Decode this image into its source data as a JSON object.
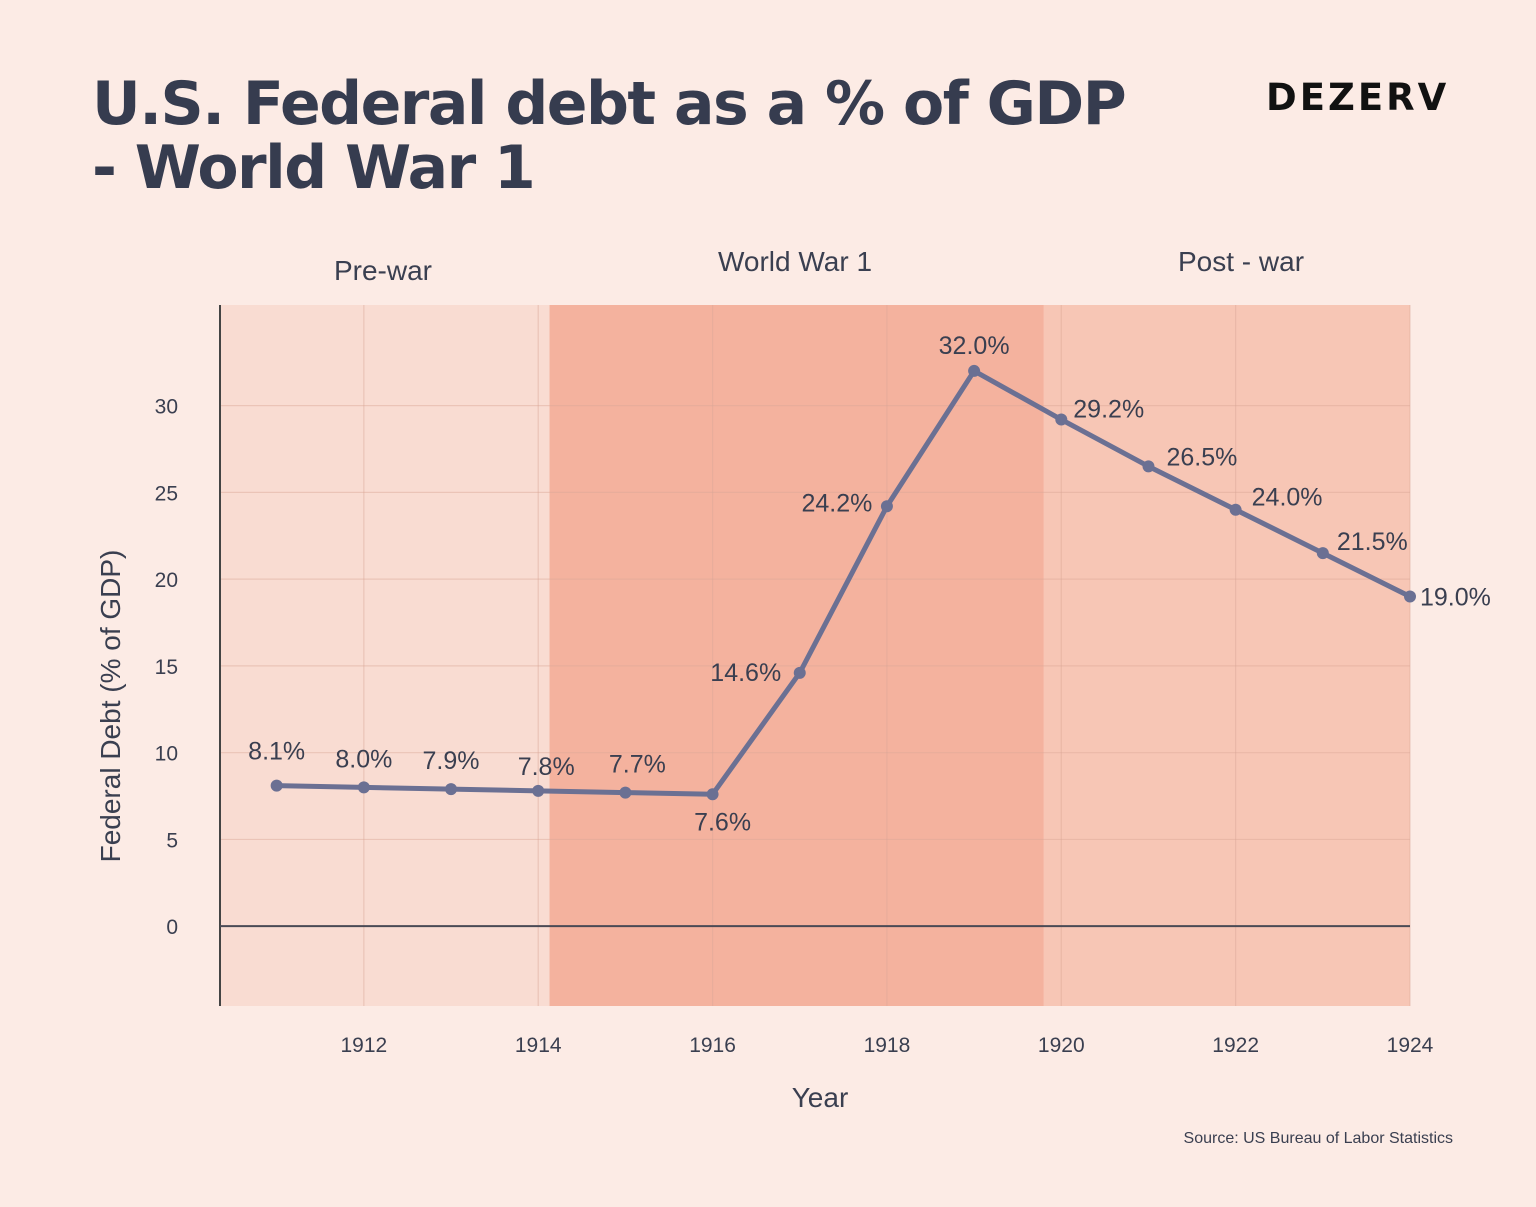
{
  "header": {
    "title_line1": "U.S. Federal debt as a % of GDP",
    "title_line2": "- World War 1",
    "brand": "DEZERV"
  },
  "footer": {
    "source": "Source: US Bureau of Labor Statistics"
  },
  "colors": {
    "background": "#fcebe5",
    "pre_war_band": "#f9dcd2",
    "war_band": "#f4b29e",
    "post_war_band": "#f7c6b5",
    "line": "#6b7093",
    "text": "#3a3f50"
  },
  "chart_data": {
    "type": "line",
    "title": "U.S. Federal debt as a % of GDP - World War 1",
    "xlabel": "Year",
    "ylabel": "Federal Debt (% of GDP)",
    "x": [
      1911,
      1912,
      1913,
      1914,
      1915,
      1916,
      1917,
      1918,
      1919,
      1920,
      1921,
      1922,
      1923,
      1924
    ],
    "series": [
      {
        "name": "Federal Debt (% of GDP)",
        "values": [
          8.1,
          8.0,
          7.9,
          7.8,
          7.7,
          7.6,
          14.6,
          24.2,
          32.0,
          29.2,
          26.5,
          24.0,
          21.5,
          19.0
        ],
        "labels": [
          "8.1%",
          "8.0%",
          "7.9%",
          "7.8%",
          "7.7%",
          "7.6%",
          "14.6%",
          "24.2%",
          "32.0%",
          "29.2%",
          "26.5%",
          "24.0%",
          "21.5%",
          "19.0%"
        ]
      }
    ],
    "xlim": [
      1910.35,
      1924
    ],
    "ylim": [
      -4.6,
      35.8
    ],
    "x_ticks": [
      1912,
      1914,
      1916,
      1918,
      1920,
      1922,
      1924
    ],
    "x_tick_labels": [
      "1912",
      "1914",
      "1916",
      "1918",
      "1920",
      "1922",
      "1924"
    ],
    "y_ticks": [
      0,
      5,
      10,
      15,
      20,
      25,
      30
    ],
    "y_tick_labels": [
      "0",
      "5",
      "10",
      "15",
      "20",
      "25",
      "30"
    ],
    "grid": true,
    "bands": [
      {
        "label": "Pre-war",
        "from": 1910.35,
        "to": 1914.13
      },
      {
        "label": "World War 1",
        "from": 1914.13,
        "to": 1919.8
      },
      {
        "label": "Post - war",
        "from": 1919.8,
        "to": 1924
      }
    ]
  }
}
